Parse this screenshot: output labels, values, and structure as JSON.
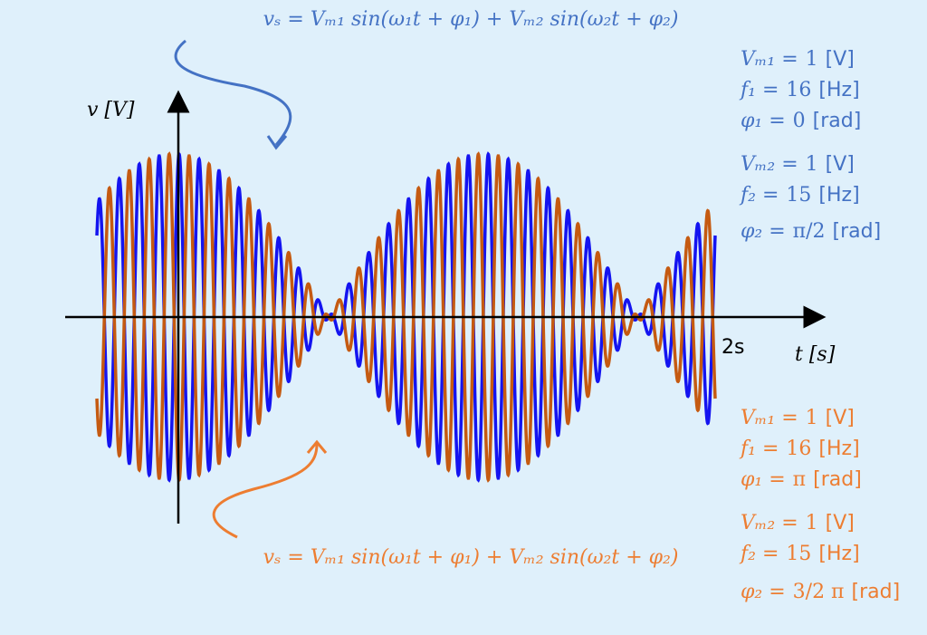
{
  "axes": {
    "y_label": "v [V]",
    "x_label": "t [s]",
    "t_end": {
      "value": 2,
      "label": "2s"
    }
  },
  "blue": {
    "equation": "vₛ = Vₘ₁ sin(ω₁t + φ₁) + Vₘ₂ sin(ω₂t + φ₂)",
    "params": [
      {
        "name": "Vₘ₁ =",
        "value": 1,
        "unit": "[V]"
      },
      {
        "name": "f₁ =",
        "value": 16,
        "unit": "[Hz]"
      },
      {
        "name": "φ₁ =",
        "value": 0,
        "unit": "[rad]"
      },
      {
        "name": "Vₘ₂ =",
        "value": 1,
        "unit": "[V]"
      },
      {
        "name": "f₂ =",
        "value": 15,
        "unit": "[Hz]"
      },
      {
        "name": "φ₂ =",
        "value": 1.5708,
        "value_label": "π/2",
        "unit": "[rad]"
      }
    ]
  },
  "orange": {
    "equation": "vₛ = Vₘ₁ sin(ω₁t + φ₁) + Vₘ₂ sin(ω₂t + φ₂)",
    "params": [
      {
        "name": "Vₘ₁ =",
        "value": 1,
        "unit": "[V]"
      },
      {
        "name": "f₁ =",
        "value": 16,
        "unit": "[Hz]"
      },
      {
        "name": "φ₁ =",
        "value": 3.1416,
        "value_label": "π",
        "unit": "[rad]"
      },
      {
        "name": "Vₘ₂ =",
        "value": 1,
        "unit": "[V]"
      },
      {
        "name": "f₂ =",
        "value": 15,
        "unit": "[Hz]"
      },
      {
        "name": "φ₂ =",
        "value": 4.7124,
        "value_label": "3/2 π",
        "unit": "[rad]"
      }
    ]
  }
}
